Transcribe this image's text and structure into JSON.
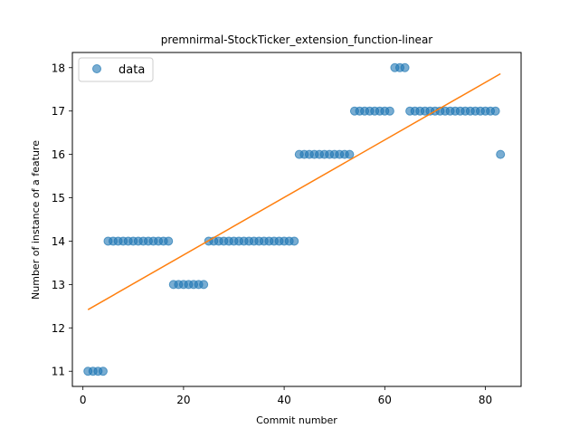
{
  "chart_data": {
    "type": "scatter",
    "title": "premnirmal-StockTicker_extension_function-linear",
    "xlabel": "Commit number",
    "ylabel": "Number of instance of a feature",
    "xlim": [
      -2.1,
      87.1
    ],
    "ylim": [
      10.65,
      18.35
    ],
    "xticks": [
      0,
      20,
      40,
      60,
      80
    ],
    "yticks": [
      11,
      12,
      13,
      14,
      15,
      16,
      17,
      18
    ],
    "grid": false,
    "legend": {
      "position": "top-left",
      "entries": [
        "data"
      ]
    },
    "series": [
      {
        "name": "data",
        "kind": "points",
        "color": "#1f77b4",
        "x": [
          1,
          2,
          3,
          4,
          5,
          6,
          7,
          8,
          9,
          10,
          11,
          12,
          13,
          14,
          15,
          16,
          17,
          18,
          19,
          20,
          21,
          22,
          23,
          24,
          25,
          26,
          27,
          28,
          29,
          30,
          31,
          32,
          33,
          34,
          35,
          36,
          37,
          38,
          39,
          40,
          41,
          42,
          43,
          44,
          45,
          46,
          47,
          48,
          49,
          50,
          51,
          52,
          53,
          54,
          55,
          56,
          57,
          58,
          59,
          60,
          61,
          62,
          63,
          64,
          65,
          66,
          67,
          68,
          69,
          70,
          71,
          72,
          73,
          74,
          75,
          76,
          77,
          78,
          79,
          80,
          81,
          82,
          83
        ],
        "y": [
          11,
          11,
          11,
          11,
          14,
          14,
          14,
          14,
          14,
          14,
          14,
          14,
          14,
          14,
          14,
          14,
          14,
          13,
          13,
          13,
          13,
          13,
          13,
          13,
          14,
          14,
          14,
          14,
          14,
          14,
          14,
          14,
          14,
          14,
          14,
          14,
          14,
          14,
          14,
          14,
          14,
          14,
          16,
          16,
          16,
          16,
          16,
          16,
          16,
          16,
          16,
          16,
          16,
          17,
          17,
          17,
          17,
          17,
          17,
          17,
          17,
          18,
          18,
          18,
          17,
          17,
          17,
          17,
          17,
          17,
          17,
          17,
          17,
          17,
          17,
          17,
          17,
          17,
          17,
          17,
          17,
          17,
          16
        ]
      },
      {
        "kind": "line",
        "color": "#ff7f0e",
        "x": [
          1,
          83
        ],
        "y": [
          12.42,
          17.86
        ]
      }
    ]
  }
}
